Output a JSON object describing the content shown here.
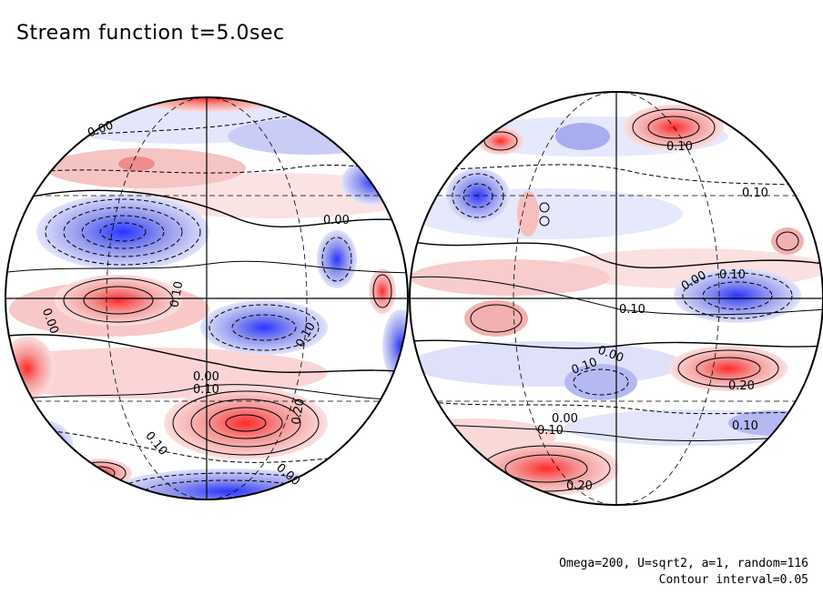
{
  "title": "Stream function t=5.0sec",
  "footer": {
    "params": "Omega=200, U=sqrt2, a=1, random=116",
    "contour_interval": "Contour interval=0.05"
  },
  "colors": {
    "positive": "#e83030",
    "negative": "#2030e0",
    "background": "#ffffff"
  },
  "left_hemisphere": {
    "contour_labels": [
      "0.00",
      "0.10",
      "0.00",
      "0.10",
      "0.00",
      "0.10",
      "0.20",
      "0.10",
      "0.00",
      "0.00"
    ]
  },
  "right_hemisphere": {
    "contour_labels": [
      "0.10",
      "0.10",
      "0.00",
      "0.10",
      "0.10",
      "0.00",
      "0.10",
      "0.20",
      "0.00",
      "0.10",
      "0.10",
      "0.20"
    ]
  }
}
